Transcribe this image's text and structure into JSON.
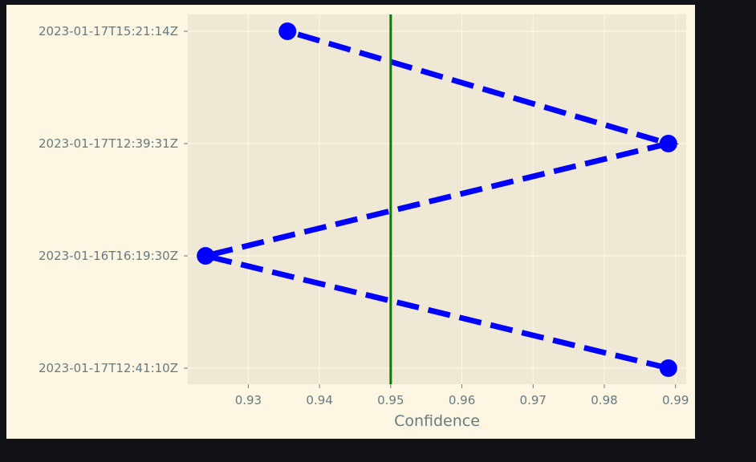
{
  "chart_data": {
    "type": "line",
    "title": "",
    "xlabel": "Confidence",
    "ylabel": "",
    "xlim": [
      0.9215,
      0.9915
    ],
    "xticks": [
      0.93,
      0.94,
      0.95,
      0.96,
      0.97,
      0.98,
      0.99
    ],
    "xtick_labels": [
      "0.93",
      "0.94",
      "0.95",
      "0.96",
      "0.97",
      "0.98",
      "0.99"
    ],
    "categories": [
      "2023-01-17T12:41:10Z",
      "2023-01-16T16:19:30Z",
      "2023-01-17T12:39:31Z",
      "2023-01-17T15:21:14Z"
    ],
    "series": [
      {
        "name": "confidence",
        "points": [
          {
            "y": "2023-01-17T12:41:10Z",
            "x": 0.989
          },
          {
            "y": "2023-01-16T16:19:30Z",
            "x": 0.924
          },
          {
            "y": "2023-01-17T12:39:31Z",
            "x": 0.989
          },
          {
            "y": "2023-01-17T15:21:14Z",
            "x": 0.9355
          }
        ],
        "color": "#0000ff",
        "line_style": "dashed",
        "marker": "circle"
      }
    ],
    "threshold": {
      "x": 0.95,
      "color": "#008000",
      "orientation": "vertical"
    },
    "grid": true
  },
  "colors": {
    "page_background": "#111318",
    "figure_background": "#fdf6e3",
    "axes_background": "#eee8d5",
    "grid": "#fdf6e3",
    "tick_text": "#657b83"
  }
}
